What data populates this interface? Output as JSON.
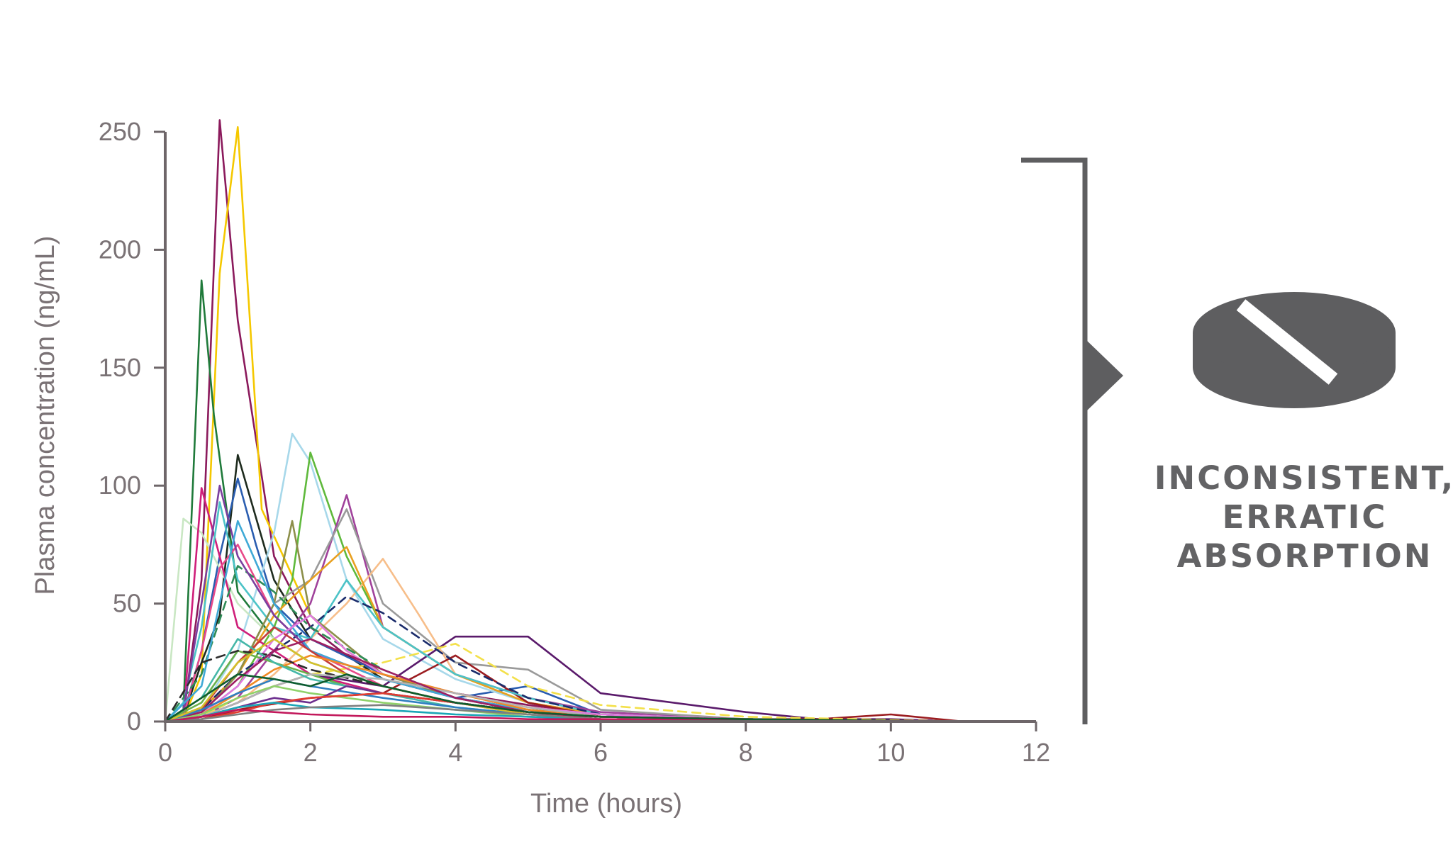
{
  "chart_data": {
    "type": "line",
    "title": "",
    "xlabel": "Time (hours)",
    "ylabel": "Plasma concentration (ng/mL)",
    "xlim": [
      0,
      12
    ],
    "ylim": [
      0,
      250
    ],
    "x_ticks": [
      "0",
      "2",
      "4",
      "6",
      "8",
      "10",
      "12"
    ],
    "y_ticks": [
      "0",
      "50",
      "100",
      "150",
      "200",
      "250"
    ],
    "grid": false,
    "legend": "none",
    "series": [
      {
        "color": "#8b1a5c",
        "dash": false,
        "x": [
          0,
          0.25,
          0.5,
          0.75,
          1,
          1.5,
          2,
          2.5,
          3,
          4,
          5,
          6,
          8,
          10,
          11
        ],
        "y": [
          0,
          2,
          60,
          255,
          170,
          70,
          40,
          28,
          20,
          12,
          7,
          3,
          1,
          0.5,
          0
        ]
      },
      {
        "color": "#f5c800",
        "dash": false,
        "x": [
          0,
          0.25,
          0.5,
          0.75,
          1,
          1.33,
          2,
          2.5,
          3,
          4,
          5,
          6,
          8,
          11
        ],
        "y": [
          0,
          1,
          20,
          190,
          252,
          90,
          45,
          30,
          20,
          12,
          6,
          3,
          1,
          0
        ]
      },
      {
        "color": "#1f7a3a",
        "dash": false,
        "x": [
          0,
          0.25,
          0.5,
          0.67,
          1,
          1.5,
          2,
          3,
          4,
          5,
          6,
          8,
          11
        ],
        "y": [
          0,
          5,
          187,
          130,
          55,
          35,
          25,
          15,
          8,
          4,
          2,
          1,
          0
        ]
      },
      {
        "color": "#1e2b1e",
        "dash": false,
        "x": [
          0,
          0.25,
          0.5,
          0.75,
          1,
          1.5,
          2,
          2.5,
          3,
          4,
          5,
          6,
          8,
          11
        ],
        "y": [
          0,
          2,
          25,
          45,
          113,
          60,
          35,
          28,
          18,
          10,
          5,
          2,
          1,
          0
        ]
      },
      {
        "color": "#2a5db0",
        "dash": false,
        "x": [
          0,
          0.25,
          0.5,
          0.75,
          1,
          1.25,
          1.5,
          2,
          3,
          4,
          5,
          6,
          8,
          11
        ],
        "y": [
          0,
          3,
          30,
          70,
          103,
          75,
          50,
          35,
          20,
          10,
          15,
          3,
          1,
          0
        ]
      },
      {
        "color": "#a7d8ea",
        "dash": false,
        "x": [
          0,
          0.5,
          1,
          1.5,
          1.75,
          2,
          2.5,
          3,
          4,
          5,
          6,
          8,
          11
        ],
        "y": [
          0,
          5,
          30,
          80,
          122,
          110,
          60,
          35,
          18,
          8,
          3,
          1,
          0
        ]
      },
      {
        "color": "#5fb93c",
        "dash": false,
        "x": [
          0,
          0.5,
          1,
          1.5,
          1.75,
          2,
          2.5,
          3,
          4,
          5,
          6,
          8,
          11
        ],
        "y": [
          0,
          3,
          15,
          40,
          60,
          114,
          70,
          40,
          20,
          8,
          3,
          1,
          0
        ]
      },
      {
        "color": "#a0429b",
        "dash": false,
        "x": [
          0,
          0.5,
          1,
          1.5,
          2,
          2.5,
          3,
          4,
          5,
          6,
          8,
          11
        ],
        "y": [
          0,
          2,
          10,
          30,
          50,
          96,
          40,
          20,
          10,
          4,
          1,
          0
        ]
      },
      {
        "color": "#c9e7c3",
        "dash": false,
        "x": [
          0,
          0.25,
          0.5,
          1,
          1.5,
          2,
          3,
          4,
          5,
          6,
          8,
          11
        ],
        "y": [
          0,
          86,
          80,
          50,
          35,
          25,
          15,
          8,
          4,
          2,
          1,
          0
        ]
      },
      {
        "color": "#cf1f7a",
        "dash": false,
        "x": [
          0,
          0.25,
          0.5,
          0.75,
          1,
          1.5,
          2,
          3,
          4,
          5,
          6,
          8,
          11
        ],
        "y": [
          0,
          2,
          99,
          70,
          40,
          30,
          20,
          12,
          8,
          4,
          2,
          1,
          0
        ]
      },
      {
        "color": "#9a9a9a",
        "dash": false,
        "x": [
          0,
          0.5,
          1,
          1.5,
          2,
          2.5,
          3,
          4,
          5,
          6,
          8,
          11
        ],
        "y": [
          0,
          5,
          20,
          50,
          60,
          90,
          50,
          25,
          22,
          5,
          1,
          0
        ]
      },
      {
        "color": "#f7be8a",
        "dash": false,
        "x": [
          0,
          0.5,
          1,
          1.5,
          2,
          2.5,
          3,
          3.5,
          4,
          5,
          6,
          8,
          11
        ],
        "y": [
          0,
          2,
          8,
          20,
          35,
          50,
          69,
          45,
          20,
          8,
          3,
          1,
          0
        ]
      },
      {
        "color": "#e8a020",
        "dash": false,
        "x": [
          0,
          0.5,
          1,
          1.5,
          2,
          2.5,
          3,
          4,
          5,
          6,
          8,
          11
        ],
        "y": [
          0,
          5,
          20,
          45,
          60,
          74,
          40,
          20,
          8,
          3,
          1,
          0
        ]
      },
      {
        "color": "#5a1a6b",
        "dash": false,
        "x": [
          0,
          0.5,
          1,
          1.5,
          2,
          3,
          4,
          5,
          6,
          8,
          9,
          10,
          11
        ],
        "y": [
          0,
          2,
          8,
          15,
          20,
          15,
          36,
          36,
          12,
          4,
          1,
          1,
          0
        ]
      },
      {
        "color": "#9b1c20",
        "dash": false,
        "x": [
          0,
          0.5,
          1,
          2,
          3,
          4,
          5,
          6,
          8,
          9,
          10,
          11
        ],
        "y": [
          0,
          1,
          5,
          10,
          12,
          28,
          8,
          2,
          1,
          1,
          3,
          0
        ]
      },
      {
        "color": "#f3e04a",
        "dash": true,
        "x": [
          0,
          0.5,
          1,
          2,
          3,
          4,
          5,
          6,
          8,
          11
        ],
        "y": [
          0,
          2,
          10,
          20,
          25,
          33,
          15,
          7,
          2,
          0
        ]
      },
      {
        "color": "#4cc3c7",
        "dash": false,
        "x": [
          0,
          0.25,
          0.5,
          0.75,
          1,
          1.5,
          2,
          2.5,
          3,
          4,
          5,
          6,
          8,
          11
        ],
        "y": [
          0,
          8,
          40,
          93,
          60,
          40,
          35,
          60,
          40,
          20,
          10,
          3,
          1,
          0
        ]
      },
      {
        "color": "#1b2c6b",
        "dash": true,
        "x": [
          0,
          0.5,
          1,
          1.5,
          2,
          2.5,
          3,
          4,
          5,
          6,
          8,
          11
        ],
        "y": [
          0,
          5,
          20,
          30,
          40,
          53,
          46,
          25,
          10,
          3,
          1,
          0
        ]
      },
      {
        "color": "#e84a8a",
        "dash": false,
        "x": [
          0,
          0.25,
          0.5,
          0.75,
          1,
          1.5,
          2,
          3,
          4,
          5,
          6,
          8,
          11
        ],
        "y": [
          0,
          2,
          30,
          65,
          75,
          45,
          30,
          15,
          8,
          3,
          1,
          0.5,
          0
        ]
      },
      {
        "color": "#8c8f4a",
        "dash": false,
        "x": [
          0,
          0.5,
          1,
          1.5,
          1.75,
          2,
          3,
          4,
          5,
          6,
          8,
          11
        ],
        "y": [
          0,
          3,
          20,
          50,
          85,
          45,
          20,
          10,
          4,
          2,
          1,
          0
        ]
      },
      {
        "color": "#2e8b57",
        "dash": true,
        "x": [
          0,
          0.5,
          1,
          1.5,
          2,
          3,
          4,
          5,
          6,
          8,
          11
        ],
        "y": [
          0,
          20,
          66,
          55,
          40,
          22,
          10,
          5,
          2,
          1,
          0
        ]
      },
      {
        "color": "#7b3f9e",
        "dash": false,
        "x": [
          0,
          0.25,
          0.5,
          0.75,
          1,
          1.5,
          2,
          3,
          4,
          5,
          6,
          8,
          11
        ],
        "y": [
          0,
          5,
          50,
          100,
          70,
          45,
          30,
          18,
          10,
          5,
          2,
          1,
          0
        ]
      },
      {
        "color": "#3fa9d6",
        "dash": false,
        "x": [
          0,
          0.5,
          1,
          1.5,
          2,
          3,
          4,
          5,
          6,
          8,
          11
        ],
        "y": [
          0,
          15,
          85,
          50,
          30,
          18,
          10,
          5,
          2,
          1,
          0
        ]
      },
      {
        "color": "#c43b3b",
        "dash": false,
        "x": [
          0,
          0.5,
          1,
          1.5,
          2,
          2.5,
          3,
          4,
          5,
          6,
          8,
          11
        ],
        "y": [
          0,
          5,
          25,
          40,
          30,
          20,
          15,
          8,
          4,
          2,
          1,
          0
        ]
      },
      {
        "color": "#e07be0",
        "dash": false,
        "x": [
          0,
          0.5,
          1,
          1.5,
          2,
          2.5,
          3,
          4,
          5,
          6,
          8,
          11
        ],
        "y": [
          0,
          3,
          15,
          35,
          45,
          30,
          20,
          12,
          6,
          3,
          1,
          0
        ]
      },
      {
        "color": "#6ab04c",
        "dash": false,
        "x": [
          0,
          0.5,
          1,
          1.5,
          2,
          2.5,
          3,
          4,
          5,
          6,
          8,
          11
        ],
        "y": [
          0,
          8,
          30,
          25,
          20,
          15,
          12,
          8,
          4,
          2,
          1,
          0
        ]
      },
      {
        "color": "#f08a24",
        "dash": false,
        "x": [
          0,
          0.5,
          1,
          1.5,
          2,
          3,
          4,
          5,
          6,
          8,
          11
        ],
        "y": [
          0,
          3,
          12,
          22,
          28,
          20,
          12,
          5,
          2,
          1,
          0
        ]
      },
      {
        "color": "#2c2c2c",
        "dash": true,
        "x": [
          0,
          0.5,
          1,
          1.5,
          2,
          3,
          4,
          5,
          6,
          8,
          11
        ],
        "y": [
          0,
          25,
          30,
          28,
          22,
          15,
          8,
          4,
          2,
          1,
          0
        ]
      },
      {
        "color": "#b3b3b3",
        "dash": false,
        "x": [
          0,
          0.5,
          1,
          1.5,
          2,
          3,
          4,
          5,
          6,
          8,
          11
        ],
        "y": [
          0,
          2,
          8,
          15,
          20,
          18,
          12,
          6,
          2,
          1,
          0
        ]
      },
      {
        "color": "#45b7a8",
        "dash": false,
        "x": [
          0,
          0.5,
          1,
          1.5,
          2,
          2.5,
          3,
          4,
          5,
          6,
          8,
          11
        ],
        "y": [
          0,
          10,
          35,
          25,
          18,
          15,
          12,
          6,
          3,
          1,
          0.5,
          0
        ]
      },
      {
        "color": "#9e1f63",
        "dash": false,
        "x": [
          0,
          0.5,
          1,
          1.5,
          2,
          3,
          4,
          5,
          6,
          8,
          11
        ],
        "y": [
          0,
          4,
          18,
          30,
          35,
          22,
          10,
          4,
          1,
          0.5,
          0
        ]
      },
      {
        "color": "#2f7fc1",
        "dash": false,
        "x": [
          0,
          0.5,
          1,
          1.5,
          2,
          3,
          4,
          5,
          6,
          8,
          11
        ],
        "y": [
          0,
          5,
          12,
          18,
          15,
          10,
          6,
          3,
          1,
          0.5,
          0
        ]
      },
      {
        "color": "#d4c02a",
        "dash": false,
        "x": [
          0,
          0.5,
          1,
          1.5,
          2,
          3,
          4,
          5,
          6,
          8,
          11
        ],
        "y": [
          0,
          6,
          25,
          35,
          25,
          15,
          8,
          3,
          1,
          0.5,
          0
        ]
      },
      {
        "color": "#8fd16a",
        "dash": false,
        "x": [
          0,
          0.5,
          1,
          1.5,
          2,
          3,
          4,
          5,
          6,
          8,
          11
        ],
        "y": [
          0,
          3,
          10,
          15,
          12,
          8,
          5,
          2,
          1,
          0.5,
          0
        ]
      },
      {
        "color": "#6d2f8f",
        "dash": false,
        "x": [
          0,
          0.5,
          1,
          1.5,
          2,
          2.5,
          3,
          4,
          5,
          6,
          8,
          11
        ],
        "y": [
          0,
          2,
          6,
          10,
          8,
          15,
          12,
          8,
          4,
          2,
          1,
          0
        ]
      },
      {
        "color": "#e03c31",
        "dash": false,
        "x": [
          0,
          0.5,
          1,
          1.5,
          2,
          3,
          4,
          5,
          6,
          8,
          11
        ],
        "y": [
          0,
          1,
          4,
          8,
          10,
          12,
          8,
          4,
          2,
          1,
          0
        ]
      },
      {
        "color": "#1aa6b7",
        "dash": false,
        "x": [
          0,
          0.5,
          1,
          1.5,
          2,
          3,
          4,
          5,
          6,
          8,
          11
        ],
        "y": [
          0,
          2,
          6,
          8,
          6,
          5,
          3,
          2,
          1,
          0.5,
          0
        ]
      },
      {
        "color": "#7f7f7f",
        "dash": false,
        "x": [
          0,
          0.5,
          1,
          1.5,
          2,
          3,
          4,
          5,
          6,
          8,
          11
        ],
        "y": [
          0,
          1,
          3,
          5,
          6,
          7,
          5,
          3,
          1,
          0.5,
          0
        ]
      },
      {
        "color": "#c2185b",
        "dash": false,
        "x": [
          0,
          0.5,
          1,
          1.5,
          2,
          3,
          4,
          5,
          6,
          8,
          11
        ],
        "y": [
          0,
          2,
          5,
          4,
          3,
          2,
          2,
          1,
          1,
          0.5,
          0
        ]
      },
      {
        "color": "#0d5c2e",
        "dash": false,
        "x": [
          0,
          0.5,
          1,
          1.5,
          2,
          2.5,
          3,
          4,
          5,
          6,
          8,
          11
        ],
        "y": [
          0,
          10,
          20,
          18,
          15,
          20,
          15,
          8,
          4,
          2,
          1,
          0
        ]
      }
    ]
  },
  "callout": {
    "line1": "INCONSISTENT,",
    "line2": "ERRATIC",
    "line3": "ABSORPTION",
    "icon": "pill-tablet-icon",
    "icon_color": "#5e5e60",
    "text_color": "#636365"
  }
}
